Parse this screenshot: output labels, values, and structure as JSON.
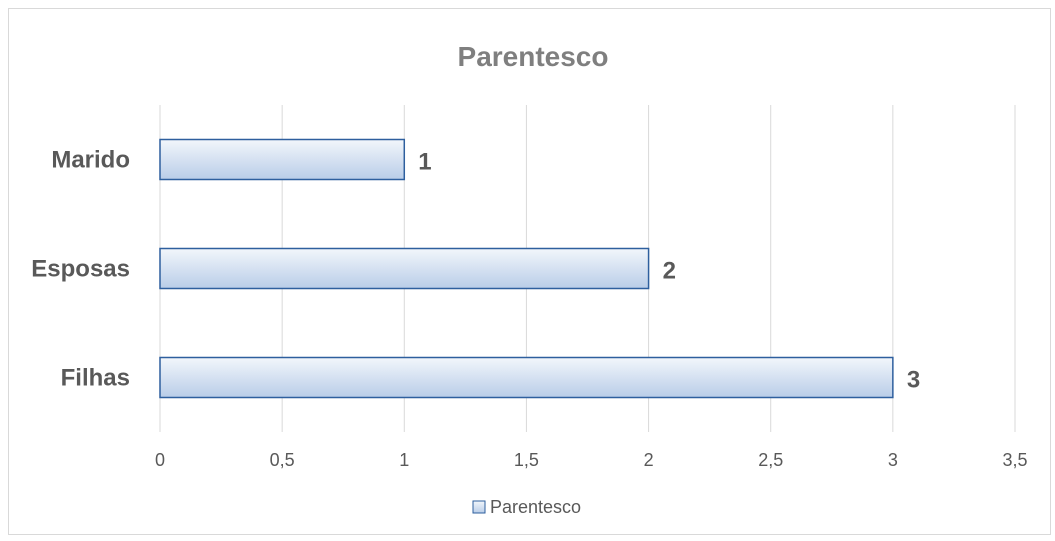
{
  "chart_data": {
    "type": "bar",
    "orientation": "horizontal",
    "title": "Parentesco",
    "categories": [
      "Filhas",
      "Esposas",
      "Marido"
    ],
    "series": [
      {
        "name": "Parentesco",
        "values": [
          3,
          2,
          1
        ]
      }
    ],
    "value_labels": [
      "3",
      "2",
      "1"
    ],
    "xlim": [
      0,
      3.5
    ],
    "x_ticks": [
      "0",
      "0,5",
      "1",
      "1,5",
      "2",
      "2,5",
      "3",
      "3,5"
    ],
    "grid": true,
    "legend_position": "bottom",
    "colors": {
      "bar_fill_top": "#f2f6fb",
      "bar_fill_bottom": "#b9cde8",
      "bar_border": "#2e5f9e"
    }
  }
}
